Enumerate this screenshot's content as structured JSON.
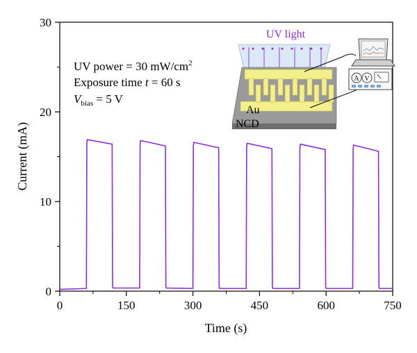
{
  "chart_data": {
    "type": "line",
    "title": "",
    "xlabel": "Time (s)",
    "ylabel": "Current (mA)",
    "xlim": [
      0,
      750
    ],
    "ylim": [
      0,
      30
    ],
    "xticks": [
      0,
      150,
      300,
      450,
      600,
      750
    ],
    "yticks": [
      0,
      10,
      20,
      30
    ],
    "grid": false,
    "series": [
      {
        "color": "#8a2be2",
        "x": [
          0,
          60,
          61,
          62,
          118,
          119,
          120,
          180,
          181,
          182,
          238,
          239,
          240,
          300,
          301,
          302,
          358,
          359,
          360,
          420,
          421,
          422,
          478,
          479,
          480,
          540,
          541,
          542,
          598,
          599,
          600,
          660,
          661,
          662,
          718,
          719,
          720,
          750
        ],
        "y": [
          0.2,
          0.3,
          16.5,
          16.9,
          16.4,
          0.6,
          0.35,
          0.35,
          16.4,
          16.8,
          16.2,
          0.6,
          0.35,
          0.3,
          16.2,
          16.6,
          16.0,
          0.55,
          0.3,
          0.3,
          16.0,
          16.5,
          15.9,
          0.55,
          0.3,
          0.3,
          16.0,
          16.4,
          15.8,
          0.55,
          0.3,
          0.3,
          15.9,
          16.3,
          15.6,
          0.5,
          0.3,
          0.3
        ]
      }
    ],
    "annotations": {
      "uv_power_prefix": "UV power = 30 mW/cm",
      "uv_power_sup": "2",
      "exposure_prefix": "Exposure time ",
      "exposure_var": "t",
      "exposure_suffix": " = 60 s",
      "vbias_var": "V",
      "vbias_sub": "bias",
      "vbias_suffix": " = 5 V"
    },
    "inset": {
      "uv_label": "UV light",
      "au_label": "Au",
      "ncd_label": "NCD",
      "meter_a": "A",
      "meter_v": "V",
      "uv_color": "#8a2be2"
    }
  }
}
